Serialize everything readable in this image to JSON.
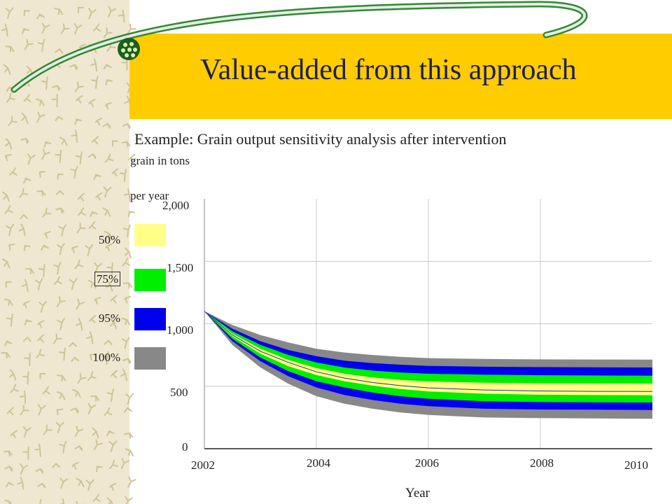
{
  "slide": {
    "title": "Value-added from this approach",
    "subtitle": "Example: Grain output sensitivity analysis after intervention"
  },
  "theme": {
    "banner_color": "#FFCC00",
    "title_color": "#1E1E5A",
    "arc_color": "#2E8B2E"
  },
  "chart_data": {
    "type": "area",
    "ylabel_lines": [
      "grain in tons",
      "per year"
    ],
    "xlabel": "Year",
    "x_ticks": [
      "2002",
      "2004",
      "2006",
      "2008",
      "2010"
    ],
    "y_ticks": [
      "0",
      "500",
      "1,000",
      "1,500",
      "2,000"
    ],
    "xlim": [
      2002,
      2010
    ],
    "ylim": [
      0,
      2000
    ],
    "grid": true,
    "legend_position": "left",
    "legend": [
      {
        "label": "50%",
        "color": "#FFFF88"
      },
      {
        "label": "75%",
        "color": "#00EE00"
      },
      {
        "label": "95%",
        "color": "#0000EE"
      },
      {
        "label": "100%",
        "color": "#888888"
      }
    ],
    "x": [
      2002,
      2002.5,
      2003,
      2003.5,
      2004,
      2004.5,
      2005,
      2005.5,
      2006,
      2007,
      2008,
      2009,
      2010
    ],
    "bands": [
      {
        "name": "100%",
        "color": "#888888",
        "lower": [
          1100,
          830,
          650,
          520,
          420,
          360,
          320,
          290,
          270,
          250,
          245,
          242,
          240
        ],
        "upper": [
          1100,
          990,
          910,
          850,
          800,
          770,
          750,
          735,
          725,
          718,
          715,
          714,
          713
        ]
      },
      {
        "name": "95%",
        "color": "#0000EE",
        "lower": [
          1100,
          860,
          700,
          580,
          490,
          430,
          390,
          360,
          340,
          320,
          314,
          312,
          310
        ],
        "upper": [
          1100,
          960,
          860,
          790,
          740,
          705,
          685,
          672,
          663,
          656,
          653,
          651,
          650
        ]
      },
      {
        "name": "75%",
        "color": "#00EE00",
        "lower": [
          1100,
          880,
          730,
          620,
          540,
          490,
          450,
          420,
          400,
          380,
          373,
          371,
          370
        ],
        "upper": [
          1100,
          940,
          830,
          750,
          690,
          650,
          625,
          610,
          600,
          592,
          588,
          586,
          585
        ]
      },
      {
        "name": "50%",
        "color": "#FFFF88",
        "lower": [
          1100,
          900,
          760,
          660,
          590,
          540,
          505,
          478,
          458,
          440,
          432,
          429,
          428
        ],
        "upper": [
          1100,
          920,
          800,
          710,
          645,
          600,
          570,
          550,
          538,
          528,
          524,
          522,
          521
        ]
      }
    ],
    "median": [
      1100,
      910,
      780,
      690,
      615,
      565,
      530,
      505,
      487,
      470,
      462,
      459,
      458
    ]
  }
}
